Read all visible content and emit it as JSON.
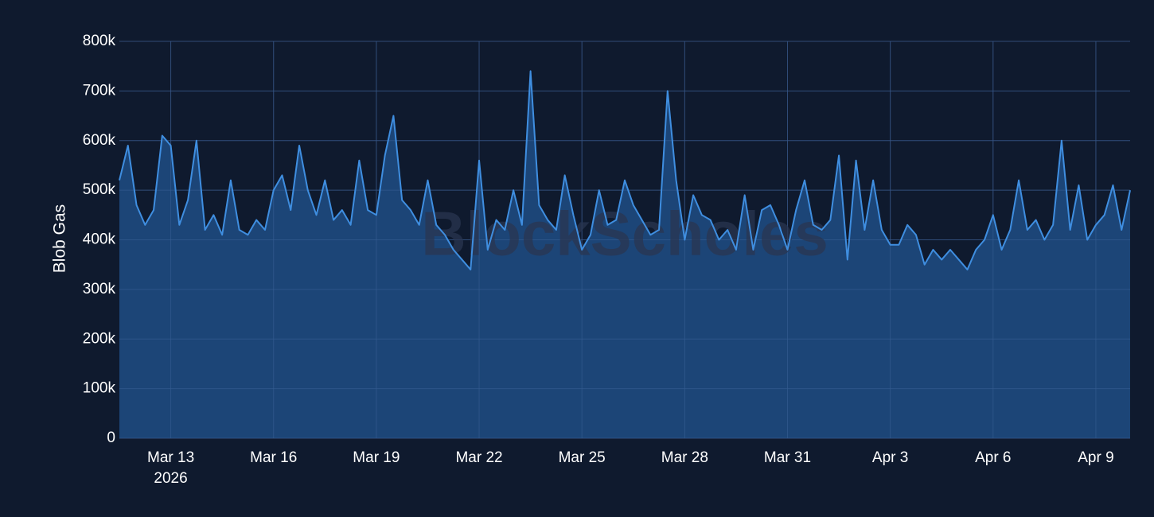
{
  "chart_data": {
    "type": "area",
    "y_axis_label": "Blob Gas",
    "watermark": "BlockScholes",
    "year_label": "2026",
    "color": "#3f8ee0",
    "fill_color": "#1e4a80",
    "grid": true,
    "xlim": [
      "2026-03-11T12:00",
      "2026-04-10T00:00"
    ],
    "xticks": [
      {
        "value": "2026-03-13T00:00",
        "label": "Mar 13"
      },
      {
        "value": "2026-03-16T00:00",
        "label": "Mar 16"
      },
      {
        "value": "2026-03-19T00:00",
        "label": "Mar 19"
      },
      {
        "value": "2026-03-22T00:00",
        "label": "Mar 22"
      },
      {
        "value": "2026-03-25T00:00",
        "label": "Mar 25"
      },
      {
        "value": "2026-03-28T00:00",
        "label": "Mar 28"
      },
      {
        "value": "2026-03-31T00:00",
        "label": "Mar 31"
      },
      {
        "value": "2026-04-03T00:00",
        "label": "Apr 3"
      },
      {
        "value": "2026-04-06T00:00",
        "label": "Apr 6"
      },
      {
        "value": "2026-04-09T00:00",
        "label": "Apr 9"
      }
    ],
    "ylim": [
      0,
      800000
    ],
    "yticks": [
      0,
      {
        "value": 100000,
        "label": "100k"
      },
      {
        "value": 200000,
        "label": "200k"
      },
      {
        "value": 300000,
        "label": "300k"
      },
      {
        "value": 400000,
        "label": "400k"
      },
      {
        "value": 500000,
        "label": "500k"
      },
      {
        "value": 600000,
        "label": "600k"
      },
      {
        "value": 700000,
        "label": "700k"
      },
      {
        "value": 800000,
        "label": "800k"
      }
    ],
    "x": [
      "2026-03-11T12:00",
      "2026-03-11T18:00",
      "2026-03-12T00:00",
      "2026-03-12T06:00",
      "2026-03-12T12:00",
      "2026-03-12T18:00",
      "2026-03-13T00:00",
      "2026-03-13T06:00",
      "2026-03-13T12:00",
      "2026-03-13T18:00",
      "2026-03-14T00:00",
      "2026-03-14T06:00",
      "2026-03-14T12:00",
      "2026-03-14T18:00",
      "2026-03-15T00:00",
      "2026-03-15T06:00",
      "2026-03-15T12:00",
      "2026-03-15T18:00",
      "2026-03-16T00:00",
      "2026-03-16T06:00",
      "2026-03-16T12:00",
      "2026-03-16T18:00",
      "2026-03-17T00:00",
      "2026-03-17T06:00",
      "2026-03-17T12:00",
      "2026-03-17T18:00",
      "2026-03-18T00:00",
      "2026-03-18T06:00",
      "2026-03-18T12:00",
      "2026-03-18T18:00",
      "2026-03-19T00:00",
      "2026-03-19T06:00",
      "2026-03-19T12:00",
      "2026-03-19T18:00",
      "2026-03-20T00:00",
      "2026-03-20T06:00",
      "2026-03-20T12:00",
      "2026-03-20T18:00",
      "2026-03-21T00:00",
      "2026-03-21T06:00",
      "2026-03-21T12:00",
      "2026-03-21T18:00",
      "2026-03-22T00:00",
      "2026-03-22T06:00",
      "2026-03-22T12:00",
      "2026-03-22T18:00",
      "2026-03-23T00:00",
      "2026-03-23T06:00",
      "2026-03-23T12:00",
      "2026-03-23T18:00",
      "2026-03-24T00:00",
      "2026-03-24T06:00",
      "2026-03-24T12:00",
      "2026-03-24T18:00",
      "2026-03-25T00:00",
      "2026-03-25T06:00",
      "2026-03-25T12:00",
      "2026-03-25T18:00",
      "2026-03-26T00:00",
      "2026-03-26T06:00",
      "2026-03-26T12:00",
      "2026-03-26T18:00",
      "2026-03-27T00:00",
      "2026-03-27T06:00",
      "2026-03-27T12:00",
      "2026-03-27T18:00",
      "2026-03-28T00:00",
      "2026-03-28T06:00",
      "2026-03-28T12:00",
      "2026-03-28T18:00",
      "2026-03-29T00:00",
      "2026-03-29T06:00",
      "2026-03-29T12:00",
      "2026-03-29T18:00",
      "2026-03-30T00:00",
      "2026-03-30T06:00",
      "2026-03-30T12:00",
      "2026-03-30T18:00",
      "2026-03-31T00:00",
      "2026-03-31T06:00",
      "2026-03-31T12:00",
      "2026-03-31T18:00",
      "2026-04-01T00:00",
      "2026-04-01T06:00",
      "2026-04-01T12:00",
      "2026-04-01T18:00",
      "2026-04-02T00:00",
      "2026-04-02T06:00",
      "2026-04-02T12:00",
      "2026-04-02T18:00",
      "2026-04-03T00:00",
      "2026-04-03T06:00",
      "2026-04-03T12:00",
      "2026-04-03T18:00",
      "2026-04-04T00:00",
      "2026-04-04T06:00",
      "2026-04-04T12:00",
      "2026-04-04T18:00",
      "2026-04-05T00:00",
      "2026-04-05T06:00",
      "2026-04-05T12:00",
      "2026-04-05T18:00",
      "2026-04-06T00:00",
      "2026-04-06T06:00",
      "2026-04-06T12:00",
      "2026-04-06T18:00",
      "2026-04-07T00:00",
      "2026-04-07T06:00",
      "2026-04-07T12:00",
      "2026-04-07T18:00",
      "2026-04-08T00:00",
      "2026-04-08T06:00",
      "2026-04-08T12:00",
      "2026-04-08T18:00",
      "2026-04-09T00:00",
      "2026-04-09T06:00",
      "2026-04-09T12:00",
      "2026-04-09T18:00",
      "2026-04-10T00:00"
    ],
    "values": [
      520000,
      590000,
      470000,
      430000,
      460000,
      610000,
      590000,
      430000,
      480000,
      600000,
      420000,
      450000,
      410000,
      520000,
      420000,
      410000,
      440000,
      420000,
      500000,
      530000,
      460000,
      590000,
      500000,
      450000,
      520000,
      440000,
      460000,
      430000,
      560000,
      460000,
      450000,
      570000,
      650000,
      480000,
      460000,
      430000,
      520000,
      430000,
      410000,
      380000,
      360000,
      340000,
      560000,
      380000,
      440000,
      420000,
      500000,
      430000,
      740000,
      470000,
      440000,
      420000,
      530000,
      450000,
      380000,
      410000,
      500000,
      430000,
      440000,
      520000,
      470000,
      440000,
      410000,
      420000,
      700000,
      520000,
      400000,
      490000,
      450000,
      440000,
      400000,
      420000,
      380000,
      490000,
      380000,
      460000,
      470000,
      430000,
      380000,
      460000,
      520000,
      430000,
      420000,
      440000,
      570000,
      360000,
      560000,
      420000,
      520000,
      420000,
      390000,
      390000,
      430000,
      410000,
      350000,
      380000,
      360000,
      380000,
      360000,
      340000,
      380000,
      400000,
      450000,
      380000,
      420000,
      520000,
      420000,
      440000,
      400000,
      430000,
      600000,
      420000,
      510000,
      400000,
      430000,
      450000,
      510000,
      420000,
      500000
    ]
  }
}
